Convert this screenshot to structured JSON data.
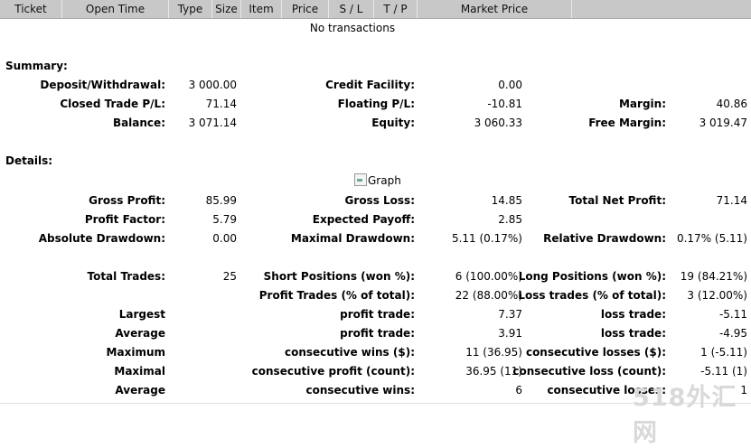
{
  "header": {
    "columns": [
      "Ticket",
      "Open Time",
      "Type",
      "Size",
      "Item",
      "Price",
      "S / L",
      "T / P",
      "Market Price"
    ]
  },
  "no_transactions": "No transactions",
  "summary": {
    "title": "Summary:",
    "rows": [
      [
        "Deposit/Withdrawal:",
        "3 000.00",
        "Credit Facility:",
        "0.00",
        "",
        ""
      ],
      [
        "Closed Trade P/L:",
        "71.14",
        "Floating P/L:",
        "-10.81",
        "Margin:",
        "40.86"
      ],
      [
        "Balance:",
        "3 071.14",
        "Equity:",
        "3 060.33",
        "Free Margin:",
        "3 019.47"
      ]
    ]
  },
  "details": {
    "title": "Details:",
    "graph_alt": "Graph",
    "rows": [
      [
        "Gross Profit:",
        "85.99",
        "Gross Loss:",
        "14.85",
        "Total Net Profit:",
        "71.14"
      ],
      [
        "Profit Factor:",
        "5.79",
        "Expected Payoff:",
        "2.85",
        "",
        ""
      ],
      [
        "Absolute Drawdown:",
        "0.00",
        "Maximal Drawdown:",
        "5.11 (0.17%)",
        "Relative Drawdown:",
        "0.17% (5.11)"
      ],
      [
        "",
        "",
        "",
        "",
        "",
        ""
      ],
      [
        "Total Trades:",
        "25",
        "Short Positions (won %):",
        "6 (100.00%)",
        "Long Positions (won %):",
        "19 (84.21%)"
      ],
      [
        "",
        "",
        "Profit Trades (% of total):",
        "22 (88.00%)",
        "Loss trades (% of total):",
        "3 (12.00%)"
      ],
      [
        "Largest",
        "",
        "profit trade:",
        "7.37",
        "loss trade:",
        "-5.11"
      ],
      [
        "Average",
        "",
        "profit trade:",
        "3.91",
        "loss trade:",
        "-4.95"
      ],
      [
        "Maximum",
        "",
        "consecutive wins ($):",
        "11 (36.95)",
        "consecutive losses ($):",
        "1 (-5.11)"
      ],
      [
        "Maximal",
        "",
        "consecutive profit (count):",
        "36.95 (11)",
        "consecutive loss (count):",
        "-5.11 (1)"
      ],
      [
        "Average",
        "",
        "consecutive wins:",
        "6",
        "consecutive losses:",
        "1"
      ]
    ]
  },
  "watermark": "518外汇网"
}
